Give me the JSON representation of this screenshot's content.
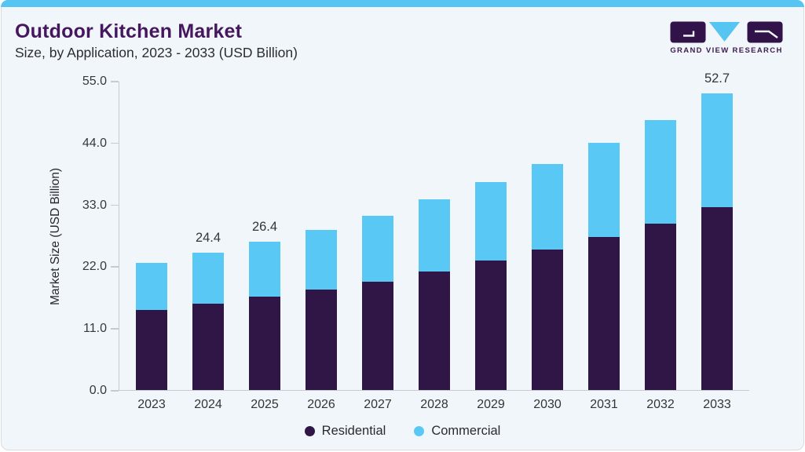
{
  "header": {
    "title": "Outdoor Kitchen Market",
    "subtitle": "Size, by Application, 2023 - 2033 (USD Billion)",
    "brand": "GRAND VIEW RESEARCH"
  },
  "theme": {
    "accent_blue": "#56c5f1",
    "brand_purple": "#45175f",
    "card_background": "#f1f6fa",
    "axis_color": "#c6cbd2",
    "residential_color": "#301647",
    "commercial_color": "#5ac8f5",
    "label_text": "#33353c"
  },
  "chart_data": {
    "type": "bar",
    "stacked": true,
    "title": "Outdoor Kitchen Market",
    "subtitle": "Size, by Application, 2023 - 2033 (USD Billion)",
    "xlabel": "",
    "ylabel": "Market Size (USD Billion)",
    "ylim": [
      0,
      55
    ],
    "yticks": [
      0,
      11,
      22,
      33,
      44,
      55
    ],
    "grid": false,
    "legend_position": "bottom",
    "categories": [
      "2023",
      "2024",
      "2025",
      "2026",
      "2027",
      "2028",
      "2029",
      "2030",
      "2031",
      "2032",
      "2033"
    ],
    "series": [
      {
        "name": "Residential",
        "color": "#301647",
        "values": [
          14.3,
          15.4,
          16.6,
          17.9,
          19.3,
          21.1,
          23.0,
          25.0,
          27.2,
          29.6,
          32.5
        ]
      },
      {
        "name": "Commercial",
        "color": "#5ac8f5",
        "values": [
          8.3,
          9.0,
          9.8,
          10.6,
          11.7,
          12.8,
          14.0,
          15.2,
          16.8,
          18.4,
          20.2
        ]
      }
    ],
    "totals": [
      22.6,
      24.4,
      26.4,
      28.5,
      31.0,
      33.9,
      37.0,
      40.2,
      44.0,
      48.0,
      52.7
    ],
    "bar_labels": [
      "",
      "24.4",
      "26.4",
      "",
      "",
      "",
      "",
      "",
      "",
      "",
      "52.7"
    ]
  }
}
